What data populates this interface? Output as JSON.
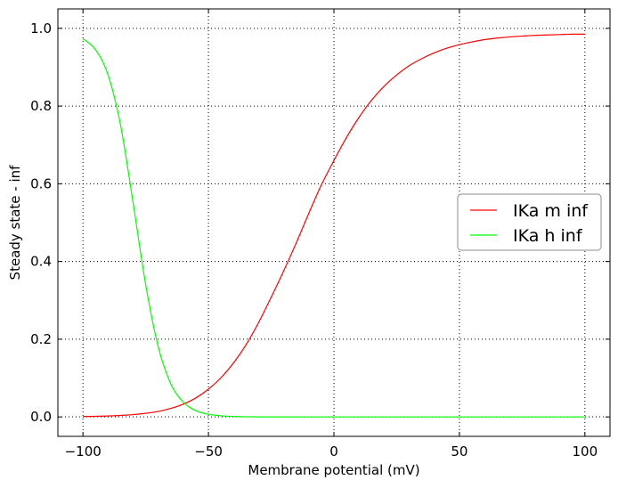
{
  "chart_data": {
    "type": "line",
    "title": "",
    "xlabel": "Membrane potential (mV)",
    "ylabel": "Steady state - inf",
    "xlim": [
      -110,
      110
    ],
    "ylim": [
      -0.05,
      1.05
    ],
    "xticks": [
      -100,
      -50,
      0,
      50,
      100
    ],
    "xtick_labels": [
      "−100",
      "−50",
      "0",
      "50",
      "100"
    ],
    "yticks": [
      0.0,
      0.2,
      0.4,
      0.6,
      0.8,
      1.0
    ],
    "ytick_labels": [
      "0.0",
      "0.2",
      "0.4",
      "0.6",
      "0.8",
      "1.0"
    ],
    "grid": true,
    "legend_position": "center-right",
    "x": [
      -100,
      -95,
      -90,
      -85,
      -80,
      -75,
      -70,
      -65,
      -60,
      -55,
      -50,
      -45,
      -40,
      -35,
      -30,
      -25,
      -20,
      -15,
      -10,
      -5,
      0,
      5,
      10,
      15,
      20,
      25,
      30,
      35,
      40,
      45,
      50,
      55,
      60,
      65,
      70,
      75,
      80,
      85,
      90,
      95,
      100
    ],
    "series": [
      {
        "name": "IKa m inf",
        "color": "#ff0000",
        "values": [
          0.001,
          0.0016,
          0.0025,
          0.0039,
          0.006,
          0.0093,
          0.014,
          0.022,
          0.033,
          0.049,
          0.0715,
          0.101,
          0.139,
          0.186,
          0.243,
          0.308,
          0.376,
          0.448,
          0.524,
          0.597,
          0.66,
          0.719,
          0.771,
          0.815,
          0.851,
          0.88,
          0.904,
          0.922,
          0.937,
          0.949,
          0.958,
          0.965,
          0.971,
          0.975,
          0.978,
          0.98,
          0.982,
          0.983,
          0.984,
          0.985,
          0.985
        ]
      },
      {
        "name": "IKa h inf",
        "color": "#00ff00",
        "values": [
          0.973,
          0.945,
          0.88,
          0.75,
          0.55,
          0.34,
          0.18,
          0.085,
          0.038,
          0.016,
          0.0068,
          0.0028,
          0.0012,
          0.0005,
          0.0002,
          0.0001,
          4e-05,
          2e-05,
          1e-05,
          0.0,
          0.0,
          0.0,
          0.0,
          0.0,
          0.0,
          0.0,
          0.0,
          0.0,
          0.0,
          0.0,
          0.0,
          0.0,
          0.0,
          0.0,
          0.0,
          0.0,
          0.0,
          0.0,
          0.0,
          0.0,
          0.0
        ]
      }
    ]
  }
}
